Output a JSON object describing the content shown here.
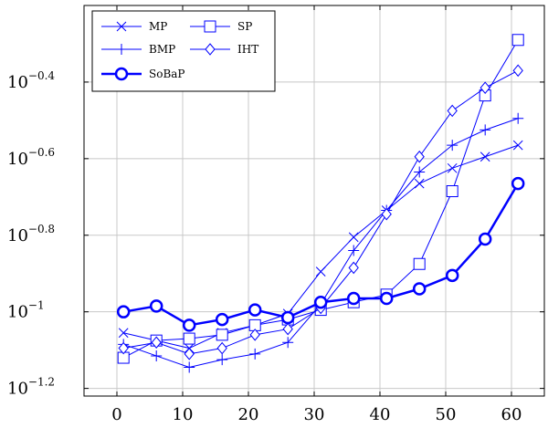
{
  "chart_data": {
    "type": "line",
    "yscale": "log10",
    "grid": true,
    "legend_position": "top-left",
    "xlim": [
      -5,
      65
    ],
    "ylim_log10": [
      -1.22,
      -0.2
    ],
    "x_ticks": [
      0,
      10,
      20,
      30,
      40,
      50,
      60
    ],
    "x_tick_labels": [
      "0",
      "10",
      "20",
      "30",
      "40",
      "50",
      "60"
    ],
    "y_ticks_log10": [
      -1.2,
      -1,
      -0.8,
      -0.6,
      -0.4
    ],
    "y_tick_labels": [
      {
        "base": "10",
        "exp": "−1.2"
      },
      {
        "base": "10",
        "exp": "−1"
      },
      {
        "base": "10",
        "exp": "−0.8"
      },
      {
        "base": "10",
        "exp": "−0.6"
      },
      {
        "base": "10",
        "exp": "−0.4"
      }
    ],
    "series_color": "#0000ff",
    "x": [
      1,
      6,
      11,
      16,
      21,
      26,
      31,
      36,
      41,
      46,
      51,
      56,
      61
    ],
    "series": [
      {
        "name": "MP",
        "marker": "x",
        "values_log10": [
          -1.055,
          -1.075,
          -1.095,
          -1.055,
          -1.035,
          -1.005,
          -0.895,
          -0.805,
          -0.735,
          -0.665,
          -0.625,
          -0.595,
          -0.565
        ]
      },
      {
        "name": "SP",
        "marker": "square",
        "values_log10": [
          -1.12,
          -1.075,
          -1.07,
          -1.06,
          -1.035,
          -1.02,
          -0.995,
          -0.975,
          -0.955,
          -0.875,
          -0.685,
          -0.435,
          -0.29
        ]
      },
      {
        "name": "BMP",
        "marker": "plus",
        "values_log10": [
          -1.085,
          -1.115,
          -1.145,
          -1.125,
          -1.11,
          -1.08,
          -0.98,
          -0.84,
          -0.735,
          -0.635,
          -0.565,
          -0.525,
          -0.495
        ]
      },
      {
        "name": "IHT",
        "marker": "diamond",
        "values_log10": [
          -1.095,
          -1.08,
          -1.11,
          -1.095,
          -1.06,
          -1.045,
          -0.99,
          -0.885,
          -0.745,
          -0.595,
          -0.475,
          -0.415,
          -0.37
        ]
      },
      {
        "name": "SoBaP",
        "marker": "circle",
        "bold": true,
        "values_log10": [
          -1,
          -0.985,
          -1.035,
          -1.02,
          -0.995,
          -1.015,
          -0.975,
          -0.965,
          -0.965,
          -0.94,
          -0.905,
          -0.81,
          -0.665
        ]
      }
    ],
    "legend_layout": [
      [
        "MP",
        "SP"
      ],
      [
        "BMP",
        "IHT"
      ],
      [
        "SoBaP"
      ]
    ]
  }
}
